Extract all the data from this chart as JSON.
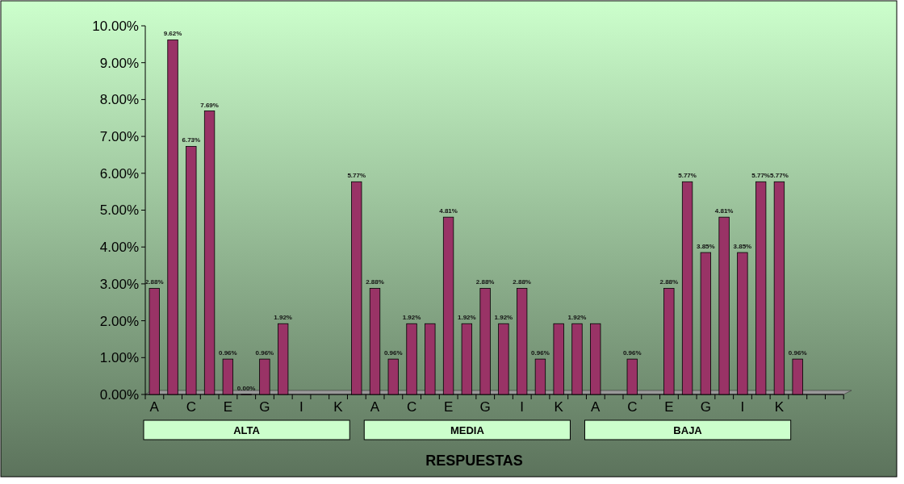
{
  "chart_data": {
    "type": "bar",
    "xlabel": "RESPUESTAS",
    "categories": [
      "A",
      null,
      "C",
      null,
      "E",
      null,
      "G",
      null,
      "I",
      null,
      "K",
      null,
      "A",
      null,
      "C",
      null,
      "E",
      null,
      "G",
      null,
      "I",
      null,
      "K",
      null,
      "A",
      null,
      "C",
      null,
      "E",
      null,
      "G",
      null,
      "I",
      null,
      "K",
      null,
      null,
      null
    ],
    "series": [
      {
        "color": "#993366",
        "values": [
          2.88,
          9.62,
          6.73,
          7.69,
          0.96,
          0.0,
          0.96,
          1.92,
          null,
          null,
          null,
          5.77,
          2.88,
          0.96,
          1.92,
          1.92,
          4.81,
          1.92,
          2.88,
          1.92,
          2.88,
          0.96,
          1.92,
          1.92,
          1.92,
          null,
          0.96,
          null,
          2.88,
          5.77,
          3.85,
          4.81,
          3.85,
          5.77,
          5.77,
          0.96,
          null,
          null
        ],
        "value_labels": [
          "2.88%",
          "9.62%",
          "6.73%",
          "7.69%",
          "0.96%",
          "0.00%",
          "0.96%",
          "1.92%",
          null,
          null,
          null,
          "5.77%",
          "2.88%",
          "0.96%",
          "1.92%",
          null,
          "4.81%",
          "1.92%",
          "2.88%",
          "1.92%",
          "2.88%",
          "0.96%",
          null,
          "1.92%",
          null,
          null,
          "0.96%",
          null,
          "2.88%",
          "5.77%",
          "3.85%",
          "4.81%",
          "3.85%",
          "5.77%",
          "5.77%",
          "0.96%",
          null,
          null
        ]
      }
    ],
    "annotations": [
      "ALTA",
      "MEDIA",
      "BAJA"
    ],
    "ylim": [
      0,
      10
    ],
    "yticks": [
      {
        "value": 0,
        "label": "0.00%"
      },
      {
        "value": 1,
        "label": "1.00%"
      },
      {
        "value": 2,
        "label": "2.00%"
      },
      {
        "value": 3,
        "label": "3.00%"
      },
      {
        "value": 4,
        "label": "4.00%"
      },
      {
        "value": 5,
        "label": "5.00%"
      },
      {
        "value": 6,
        "label": "6.00%"
      },
      {
        "value": 7,
        "label": "7.00%"
      },
      {
        "value": 8,
        "label": "8.00%"
      },
      {
        "value": 9,
        "label": "9.00%"
      },
      {
        "value": 10,
        "label": "10.00%"
      }
    ],
    "grid": false
  }
}
